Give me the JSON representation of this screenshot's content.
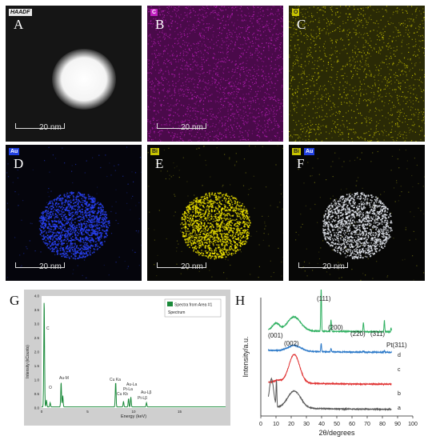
{
  "panels": [
    {
      "letter": "A",
      "tag": "HAADF",
      "scale": "20 nm",
      "kind": "haadf"
    },
    {
      "letter": "B",
      "tag": "C",
      "scale": "20 nm",
      "kind": "c"
    },
    {
      "letter": "C",
      "tag": "O",
      "scale": "",
      "kind": "o"
    },
    {
      "letter": "D",
      "tag": "Au",
      "scale": "20 nm",
      "kind": "au"
    },
    {
      "letter": "E",
      "tag": "Bi",
      "scale": "20 nm",
      "kind": "bi"
    },
    {
      "letter": "F",
      "tag": "Bi",
      "tag2": "Au",
      "scale": "20 nm",
      "kind": "f"
    }
  ],
  "colors": {
    "c": "#c020c0",
    "o": "#c8c400",
    "au": "#2a44ff",
    "bi": "#f0e400"
  },
  "panel_g": {
    "letter": "G",
    "legend": [
      "Spectra from Area #1",
      "Spectrum"
    ],
    "ylabel": "Intensity (kCounts)",
    "xlabel": "Energy (keV)",
    "peaks": [
      "C",
      "O",
      "Au-M",
      "Cu Ka",
      "Au-La",
      "Pt-La",
      "Cu Kb",
      "Au-Lβ",
      "Pt-Lβ"
    ]
  },
  "panel_h": {
    "letter": "H",
    "ylabel": "Intensity/a.u.",
    "xlabel": "2θ/degrees",
    "peak_labels": [
      "(001)",
      "(002)",
      "(111)",
      "(200)",
      "(220)",
      "(311)",
      "Pt(311)"
    ],
    "curve_labels": [
      "d",
      "c",
      "b",
      "a"
    ]
  },
  "chart_data": [
    {
      "type": "line",
      "xlabel": "Energy (keV)",
      "ylabel": "Intensity (kCounts)",
      "xlim": [
        0,
        20
      ],
      "ylim": [
        0,
        4.0
      ],
      "xticks": [
        0,
        5,
        10,
        15
      ],
      "yticks": [
        "0.0",
        "0.5",
        "1.0",
        "1.5",
        "2.0",
        "2.5",
        "3.0",
        "3.5",
        "4.0"
      ],
      "legend": "top-right",
      "series": [
        {
          "name": "Spectra from Area #1",
          "color": "#1a8a3a",
          "peaks": [
            [
              0.28,
              3.9
            ],
            [
              0.53,
              0.25
            ],
            [
              0.93,
              0.15
            ],
            [
              2.12,
              0.9
            ],
            [
              2.3,
              0.4
            ],
            [
              8.05,
              0.9
            ],
            [
              8.9,
              0.2
            ],
            [
              9.45,
              0.3
            ],
            [
              9.7,
              0.35
            ],
            [
              11.4,
              0.15
            ]
          ]
        }
      ]
    },
    {
      "type": "line",
      "xlabel": "2θ/degrees",
      "ylabel": "Intensity/a.u.",
      "xlim": [
        0,
        100
      ],
      "xticks": [
        0,
        10,
        20,
        30,
        40,
        50,
        60,
        70,
        80,
        90,
        100
      ],
      "series": [
        {
          "name": "d",
          "color": "#2eb060",
          "offset": 0.68,
          "broad": [
            [
              10,
              0.06,
              3
            ],
            [
              22,
              0.12,
              6
            ]
          ],
          "peaks": [
            [
              39.7,
              0.38
            ],
            [
              46.2,
              0.1
            ],
            [
              67.5,
              0.08
            ],
            [
              81.3,
              0.1
            ],
            [
              85.7,
              0.03
            ]
          ]
        },
        {
          "name": "c",
          "color": "#2a78c8",
          "offset": 0.5,
          "broad": [
            [
              22,
              0.05,
              6
            ]
          ],
          "peaks": [
            [
              39.7,
              0.07
            ],
            [
              46.2,
              0.03
            ],
            [
              67.5,
              0.01
            ],
            [
              81.3,
              0.015
            ]
          ]
        },
        {
          "name": "b",
          "color": "#e03030",
          "offset": 0.22,
          "broad": [
            [
              11,
              0.02,
              3
            ],
            [
              22,
              0.25,
              5
            ]
          ],
          "peaks": []
        },
        {
          "name": "a",
          "color": "#555555",
          "offset": 0.0,
          "broad": [
            [
              7,
              0.25,
              2
            ],
            [
              22,
              0.15,
              6
            ]
          ],
          "peaks": [
            [
              10.3,
              0.22
            ]
          ]
        }
      ]
    }
  ]
}
